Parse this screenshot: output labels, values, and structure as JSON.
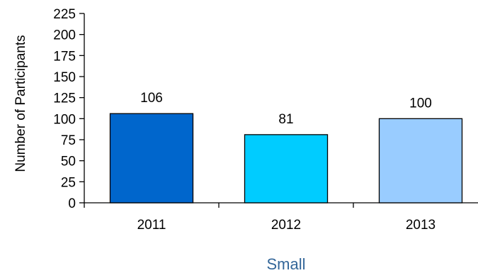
{
  "chart_data": {
    "type": "bar",
    "categories": [
      "2011",
      "2012",
      "2013"
    ],
    "values": [
      106,
      81,
      100
    ],
    "data_labels": [
      "106",
      "81",
      "100"
    ],
    "bar_colors": [
      "#0066CC",
      "#00CCFF",
      "#99CCFF"
    ],
    "ylabel": "Number of Participants",
    "xlabel": "Small",
    "xlabel_color": "#336699",
    "ylim": [
      0,
      225
    ],
    "yticks": [
      0,
      25,
      50,
      75,
      100,
      125,
      150,
      175,
      200,
      225
    ],
    "ytick_labels": [
      "0",
      "25",
      "50",
      "75",
      "100",
      "125",
      "150",
      "175",
      "200",
      "225"
    ],
    "grid": false,
    "legend": "none"
  }
}
